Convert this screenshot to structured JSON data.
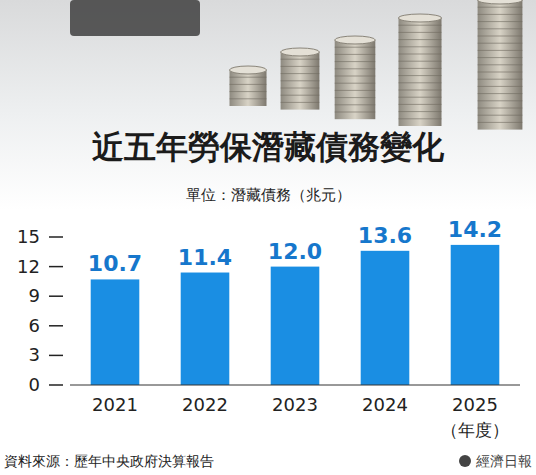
{
  "chart_data": {
    "type": "bar",
    "title": "近五年勞保潛藏債務變化",
    "subtitle": "單位：潛藏債務（兆元）",
    "categories": [
      "2021",
      "2022",
      "2023",
      "2024",
      "2025"
    ],
    "values": [
      10.7,
      11.4,
      12.0,
      13.6,
      14.2
    ],
    "value_labels": [
      "10.7",
      "11.4",
      "12.0",
      "13.6",
      "14.2"
    ],
    "data_labels": true,
    "color": "#1a8ee3",
    "ylim": [
      0,
      15
    ],
    "yticks": [
      0,
      3,
      6,
      9,
      12,
      15
    ],
    "grid": false,
    "x_label": "（年度）",
    "source": "資料來源：歷年中央政府決算報告",
    "publisher": "經濟日報"
  }
}
